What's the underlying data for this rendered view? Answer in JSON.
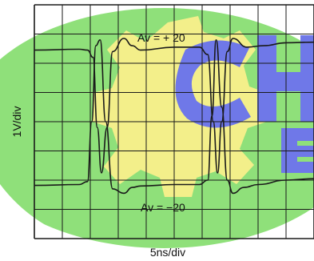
{
  "chart_data": {
    "type": "line",
    "title": "",
    "xlabel": "5ns/div",
    "ylabel": "1V/div",
    "grid": true,
    "divisions": {
      "x": 10,
      "y": 8
    },
    "watermark": {
      "text": "CH E",
      "colors": [
        "#8fe07a",
        "#f3ef8a",
        "#6f78e8"
      ]
    },
    "colors": {
      "grid": "#1a1a1a",
      "trace": "#1a1a1a",
      "background": "#ffffff"
    },
    "series": [
      {
        "name": "Av = +20",
        "label": "Av = + 20",
        "style": "solid",
        "unit_x": "div",
        "unit_y": "div",
        "x": [
          0,
          1.6,
          1.9,
          2.1,
          2.25,
          2.4,
          2.6,
          2.8,
          3.2,
          3.5,
          3.8,
          5.0,
          5.9,
          6.2,
          6.4,
          6.55,
          6.7,
          6.9,
          7.1,
          7.6,
          8.2,
          9.0,
          10.0
        ],
        "y": [
          6.45,
          6.48,
          6.45,
          6.2,
          3.8,
          2.25,
          3.8,
          6.4,
          6.85,
          6.6,
          6.45,
          6.55,
          6.55,
          6.3,
          4.0,
          2.25,
          4.0,
          6.4,
          6.85,
          6.55,
          6.6,
          6.7,
          6.72
        ]
      },
      {
        "name": "Av = -20",
        "label": "Av = −20",
        "style": "solid",
        "unit_x": "div",
        "unit_y": "div",
        "x": [
          0,
          1.6,
          1.9,
          2.05,
          2.2,
          2.35,
          2.55,
          2.8,
          3.2,
          3.5,
          3.8,
          5.0,
          5.9,
          6.2,
          6.35,
          6.5,
          6.7,
          6.9,
          7.1,
          7.5,
          8.0,
          9.0,
          10.0
        ],
        "y": [
          1.82,
          1.85,
          1.95,
          4.0,
          6.6,
          6.8,
          4.0,
          1.7,
          1.55,
          1.75,
          1.8,
          1.85,
          1.85,
          2.0,
          4.2,
          6.8,
          4.5,
          2.0,
          1.55,
          1.75,
          1.85,
          2.0,
          2.05
        ]
      }
    ]
  }
}
